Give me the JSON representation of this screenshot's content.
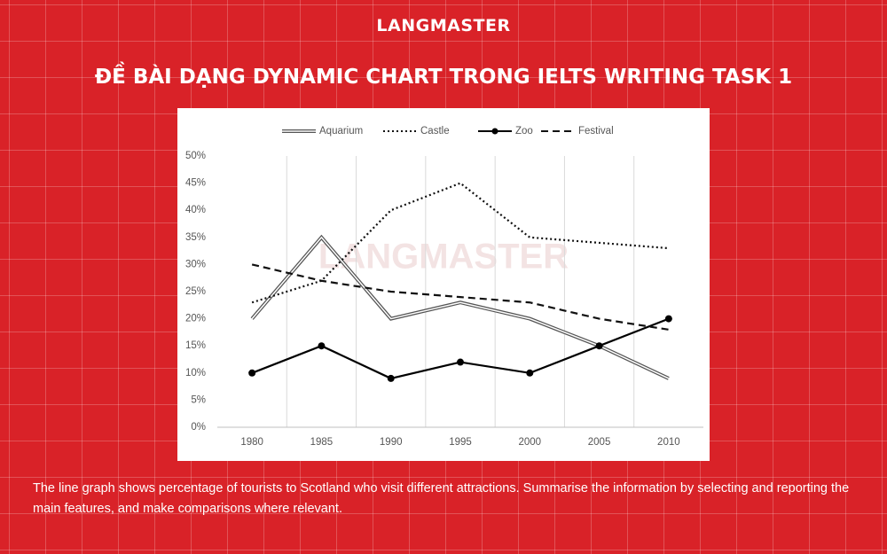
{
  "brand": "LANGMASTER",
  "heading": "ĐỀ BÀI DẠNG DYNAMIC CHART TRONG IELTS WRITING TASK 1",
  "chart_data": {
    "type": "line",
    "categories": [
      "1980",
      "1985",
      "1990",
      "1995",
      "2000",
      "2005",
      "2010"
    ],
    "series": [
      {
        "name": "Aquarium",
        "color": "#555555",
        "line_style": "double",
        "values": [
          20,
          35,
          20,
          23,
          20,
          15,
          9
        ]
      },
      {
        "name": "Castle",
        "color": "#111111",
        "line_style": "dotted",
        "values": [
          23,
          27,
          40,
          45,
          35,
          34,
          33
        ]
      },
      {
        "name": "Zoo",
        "color": "#000000",
        "line_style": "solid",
        "marker": true,
        "values": [
          10,
          15,
          9,
          12,
          10,
          15,
          20
        ]
      },
      {
        "name": "Festival",
        "color": "#111111",
        "line_style": "dashed",
        "values": [
          30,
          27,
          25,
          24,
          23,
          20,
          18
        ]
      }
    ],
    "ylim": [
      0,
      50
    ],
    "yticks": [
      {
        "value": 0,
        "label": "0%"
      },
      {
        "value": 5,
        "label": "5%"
      },
      {
        "value": 10,
        "label": "10%"
      },
      {
        "value": 15,
        "label": "15%"
      },
      {
        "value": 20,
        "label": "20%"
      },
      {
        "value": 25,
        "label": "25%"
      },
      {
        "value": 30,
        "label": "30%"
      },
      {
        "value": 35,
        "label": "35%"
      },
      {
        "value": 40,
        "label": "40%"
      },
      {
        "value": 45,
        "label": "45%"
      },
      {
        "value": 50,
        "label": "50%"
      }
    ],
    "legend": "top"
  },
  "description": "The line graph shows percentage of tourists to Scotland who visit different attractions. Summarise the information by selecting and reporting the main features, and make comparisons where relevant."
}
